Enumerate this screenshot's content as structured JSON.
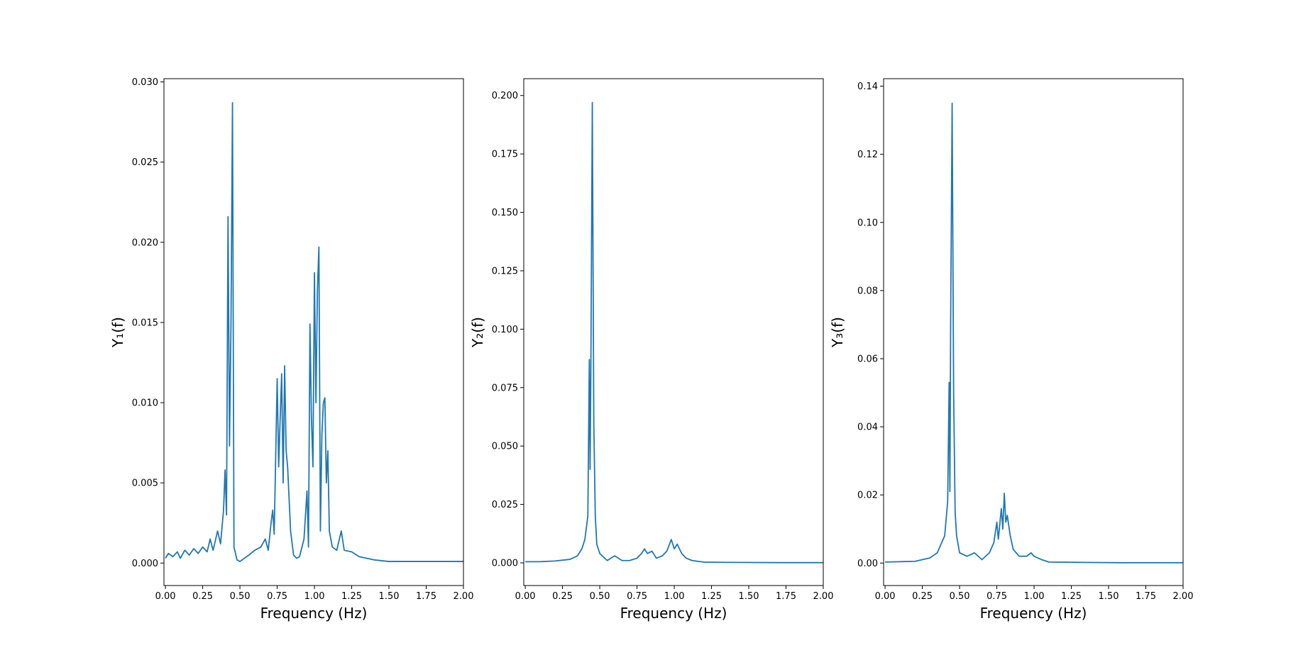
{
  "chart_data": [
    {
      "type": "line",
      "x_label": "Frequency (Hz)",
      "y_label": "Y₁(f)",
      "color": "#1f77b4",
      "xlim": [
        -0.01,
        2.0
      ],
      "ylim": [
        -0.0014,
        0.0302
      ],
      "xticks": [
        {
          "value": 0,
          "label": "0.00"
        },
        {
          "value": 0.25,
          "label": "0.25"
        },
        {
          "value": 0.5,
          "label": "0.50"
        },
        {
          "value": 0.75,
          "label": "0.75"
        },
        {
          "value": 1,
          "label": "1.00"
        },
        {
          "value": 1.25,
          "label": "1.25"
        },
        {
          "value": 1.5,
          "label": "1.50"
        },
        {
          "value": 1.75,
          "label": "1.75"
        },
        {
          "value": 2,
          "label": "2.00"
        }
      ],
      "yticks": [
        {
          "value": 0,
          "label": "0.000"
        },
        {
          "value": 0.005,
          "label": "0.005"
        },
        {
          "value": 0.01,
          "label": "0.010"
        },
        {
          "value": 0.015,
          "label": "0.015"
        },
        {
          "value": 0.02,
          "label": "0.020"
        },
        {
          "value": 0.025,
          "label": "0.025"
        },
        {
          "value": 0.03,
          "label": "0.030"
        }
      ],
      "x": [
        0,
        0.02,
        0.05,
        0.08,
        0.1,
        0.13,
        0.16,
        0.19,
        0.22,
        0.25,
        0.28,
        0.3,
        0.32,
        0.35,
        0.37,
        0.39,
        0.4,
        0.41,
        0.42,
        0.43,
        0.44,
        0.45,
        0.46,
        0.48,
        0.5,
        0.53,
        0.56,
        0.6,
        0.64,
        0.67,
        0.69,
        0.71,
        0.72,
        0.73,
        0.75,
        0.76,
        0.77,
        0.78,
        0.79,
        0.8,
        0.81,
        0.82,
        0.84,
        0.86,
        0.88,
        0.9,
        0.93,
        0.95,
        0.96,
        0.97,
        0.98,
        0.99,
        1,
        1.01,
        1.02,
        1.03,
        1.04,
        1.05,
        1.06,
        1.07,
        1.08,
        1.09,
        1.1,
        1.12,
        1.15,
        1.18,
        1.2,
        1.25,
        1.3,
        1.35,
        1.4,
        1.5,
        1.6,
        1.75,
        2
      ],
      "values": [
        0.0003,
        0.0006,
        0.0004,
        0.0007,
        0.0003,
        0.0008,
        0.0005,
        0.0009,
        0.0006,
        0.001,
        0.0007,
        0.0015,
        0.0008,
        0.002,
        0.0012,
        0.0033,
        0.0058,
        0.003,
        0.0216,
        0.0073,
        0.015,
        0.0287,
        0.001,
        0.0002,
        0.0001,
        0.0003,
        0.0005,
        0.0008,
        0.001,
        0.0015,
        0.0008,
        0.0026,
        0.0033,
        0.0018,
        0.0115,
        0.006,
        0.009,
        0.0118,
        0.005,
        0.0123,
        0.007,
        0.006,
        0.002,
        0.0005,
        0.0003,
        0.0004,
        0.0015,
        0.0045,
        0.001,
        0.0149,
        0.009,
        0.006,
        0.0181,
        0.01,
        0.017,
        0.0197,
        0.002,
        0.008,
        0.01,
        0.0103,
        0.005,
        0.007,
        0.002,
        0.001,
        0.0008,
        0.002,
        0.0008,
        0.0007,
        0.0004,
        0.0003,
        0.0002,
        0.0001,
        0.0001,
        0.0001,
        0.0001
      ]
    },
    {
      "type": "line",
      "x_label": "Frequency (Hz)",
      "y_label": "Y₂(f)",
      "color": "#1f77b4",
      "xlim": [
        -0.01,
        2.0
      ],
      "ylim": [
        -0.0097,
        0.2072
      ],
      "xticks": [
        {
          "value": 0,
          "label": "0.00"
        },
        {
          "value": 0.25,
          "label": "0.25"
        },
        {
          "value": 0.5,
          "label": "0.50"
        },
        {
          "value": 0.75,
          "label": "0.75"
        },
        {
          "value": 1,
          "label": "1.00"
        },
        {
          "value": 1.25,
          "label": "1.25"
        },
        {
          "value": 1.5,
          "label": "1.50"
        },
        {
          "value": 1.75,
          "label": "1.75"
        },
        {
          "value": 2,
          "label": "2.00"
        }
      ],
      "yticks": [
        {
          "value": 0,
          "label": "0.000"
        },
        {
          "value": 0.025,
          "label": "0.025"
        },
        {
          "value": 0.05,
          "label": "0.050"
        },
        {
          "value": 0.075,
          "label": "0.075"
        },
        {
          "value": 0.1,
          "label": "0.100"
        },
        {
          "value": 0.125,
          "label": "0.125"
        },
        {
          "value": 0.15,
          "label": "0.150"
        },
        {
          "value": 0.175,
          "label": "0.175"
        },
        {
          "value": 0.2,
          "label": "0.200"
        }
      ],
      "x": [
        0,
        0.1,
        0.2,
        0.3,
        0.35,
        0.38,
        0.4,
        0.42,
        0.43,
        0.435,
        0.44,
        0.45,
        0.46,
        0.47,
        0.48,
        0.5,
        0.55,
        0.6,
        0.65,
        0.7,
        0.75,
        0.78,
        0.8,
        0.82,
        0.85,
        0.88,
        0.92,
        0.95,
        0.98,
        1,
        1.02,
        1.05,
        1.08,
        1.12,
        1.2,
        1.4,
        1.7,
        2
      ],
      "values": [
        0.0005,
        0.0005,
        0.0008,
        0.0015,
        0.003,
        0.006,
        0.01,
        0.02,
        0.087,
        0.04,
        0.08,
        0.197,
        0.06,
        0.02,
        0.008,
        0.004,
        0.001,
        0.003,
        0.001,
        0.001,
        0.002,
        0.004,
        0.006,
        0.004,
        0.005,
        0.002,
        0.003,
        0.005,
        0.01,
        0.006,
        0.008,
        0.004,
        0.002,
        0.001,
        0.0003,
        0.0002,
        0.0001,
        0.0001
      ]
    },
    {
      "type": "line",
      "x_label": "Frequency (Hz)",
      "y_label": "Y₃(f)",
      "color": "#1f77b4",
      "xlim": [
        -0.01,
        2.0
      ],
      "ylim": [
        -0.0066,
        0.1422
      ],
      "xticks": [
        {
          "value": 0,
          "label": "0.00"
        },
        {
          "value": 0.25,
          "label": "0.25"
        },
        {
          "value": 0.5,
          "label": "0.50"
        },
        {
          "value": 0.75,
          "label": "0.75"
        },
        {
          "value": 1,
          "label": "1.00"
        },
        {
          "value": 1.25,
          "label": "1.25"
        },
        {
          "value": 1.5,
          "label": "1.50"
        },
        {
          "value": 1.75,
          "label": "1.75"
        },
        {
          "value": 2,
          "label": "2.00"
        }
      ],
      "yticks": [
        {
          "value": 0,
          "label": "0.00"
        },
        {
          "value": 0.02,
          "label": "0.02"
        },
        {
          "value": 0.04,
          "label": "0.04"
        },
        {
          "value": 0.06,
          "label": "0.06"
        },
        {
          "value": 0.08,
          "label": "0.08"
        },
        {
          "value": 0.1,
          "label": "0.10"
        },
        {
          "value": 0.12,
          "label": "0.12"
        },
        {
          "value": 0.14,
          "label": "0.14"
        }
      ],
      "x": [
        0,
        0.1,
        0.2,
        0.3,
        0.35,
        0.4,
        0.42,
        0.43,
        0.435,
        0.44,
        0.45,
        0.46,
        0.47,
        0.48,
        0.5,
        0.55,
        0.6,
        0.65,
        0.7,
        0.73,
        0.75,
        0.76,
        0.78,
        0.79,
        0.8,
        0.81,
        0.82,
        0.84,
        0.86,
        0.9,
        0.95,
        0.98,
        1,
        1.05,
        1.1,
        1.3,
        1.6,
        2
      ],
      "values": [
        0.0003,
        0.0004,
        0.0005,
        0.0015,
        0.003,
        0.008,
        0.018,
        0.053,
        0.021,
        0.07,
        0.135,
        0.05,
        0.015,
        0.008,
        0.003,
        0.002,
        0.003,
        0.001,
        0.003,
        0.006,
        0.012,
        0.007,
        0.016,
        0.01,
        0.0205,
        0.012,
        0.014,
        0.008,
        0.004,
        0.002,
        0.002,
        0.003,
        0.002,
        0.001,
        0.0003,
        0.0002,
        0.0001,
        0.0001
      ]
    }
  ]
}
